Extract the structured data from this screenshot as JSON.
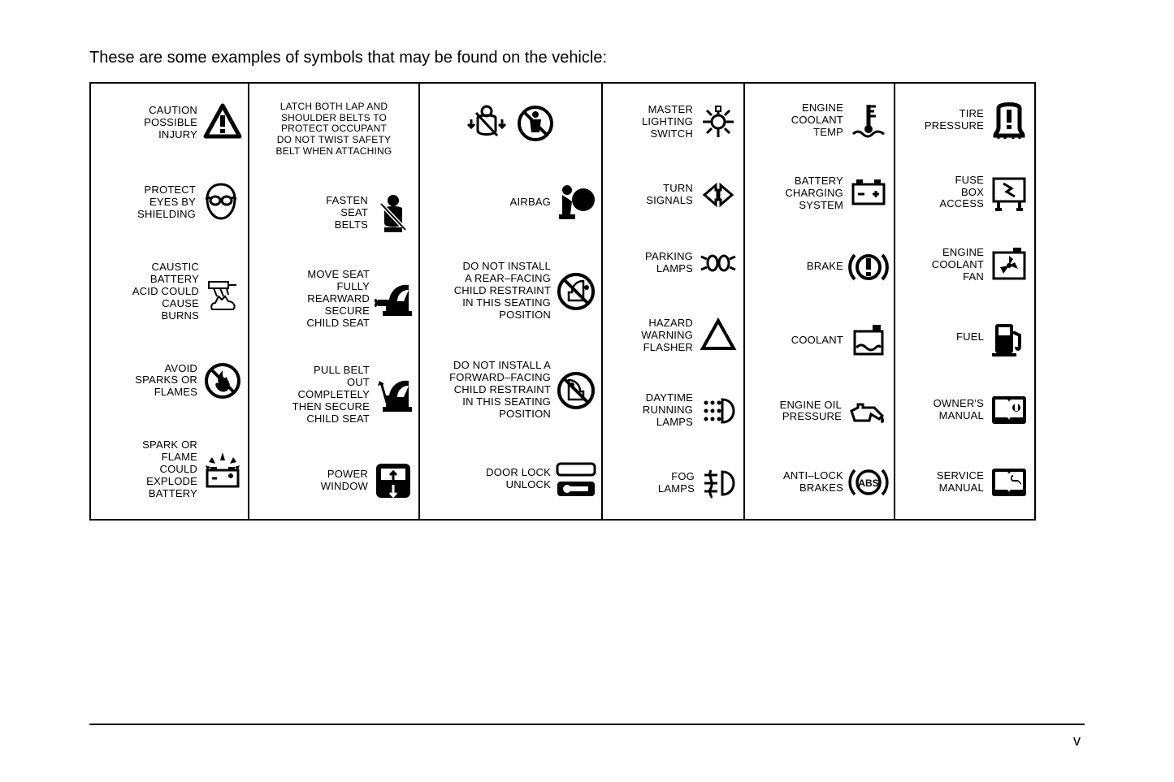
{
  "intro": "These are some examples of symbols that may be found on the vehicle:",
  "page_number": "v",
  "columns": [
    {
      "cells": [
        {
          "label": "CAUTION\nPOSSIBLE\nINJURY",
          "icon": "warning-triangle"
        },
        {
          "label": "PROTECT\nEYES BY\nSHIELDING",
          "icon": "goggles-face"
        },
        {
          "label": "CAUSTIC\nBATTERY\nACID COULD\nCAUSE\nBURNS",
          "icon": "acid-hand"
        },
        {
          "label": "AVOID\nSPARKS OR\nFLAMES",
          "icon": "no-flame"
        },
        {
          "label": "SPARK OR\nFLAME\nCOULD\nEXPLODE\nBATTERY",
          "icon": "battery-explode"
        }
      ]
    },
    {
      "cells": [
        {
          "label": "LATCH BOTH LAP AND\nSHOULDER BELTS TO\nPROTECT OCCUPANT\nDO NOT TWIST SAFETY\nBELT WHEN ATTACHING",
          "icon": "",
          "label_only": true
        },
        {
          "label": "FASTEN\nSEAT\nBELTS",
          "icon": "seatbelt-person"
        },
        {
          "label": "MOVE SEAT\nFULLY\nREARWARD\nSECURE\nCHILD SEAT",
          "icon": "child-seat-rear"
        },
        {
          "label": "PULL BELT\nOUT\nCOMPLETELY\nTHEN SECURE\nCHILD SEAT",
          "icon": "child-seat-belt"
        },
        {
          "label": "POWER\nWINDOW",
          "icon": "power-window"
        }
      ]
    },
    {
      "cells": [
        {
          "label": "",
          "icon": "belt-sequence",
          "icon_only": true
        },
        {
          "label": "AIRBAG",
          "icon": "airbag"
        },
        {
          "label": "DO NOT INSTALL\nA REAR–FACING\nCHILD RESTRAINT\nIN THIS SEATING\nPOSITION",
          "icon": "no-rear-child"
        },
        {
          "label": "DO NOT INSTALL A\nFORWARD–FACING\nCHILD RESTRAINT\nIN THIS SEATING\nPOSITION",
          "icon": "no-fwd-child"
        },
        {
          "label": "DOOR LOCK\nUNLOCK",
          "icon": "door-lock"
        }
      ]
    },
    {
      "cells": [
        {
          "label": "MASTER\nLIGHTING\nSWITCH",
          "icon": "master-light"
        },
        {
          "label": "TURN\nSIGNALS",
          "icon": "turn-signals"
        },
        {
          "label": "PARKING\nLAMPS",
          "icon": "parking-lamps"
        },
        {
          "label": "HAZARD\nWARNING\nFLASHER",
          "icon": "hazard"
        },
        {
          "label": "DAYTIME\nRUNNING\nLAMPS",
          "icon": "drl"
        },
        {
          "label": "FOG\nLAMPS",
          "icon": "fog-lamps"
        }
      ]
    },
    {
      "cells": [
        {
          "label": "ENGINE\nCOOLANT\nTEMP",
          "icon": "coolant-temp"
        },
        {
          "label": "BATTERY\nCHARGING\nSYSTEM",
          "icon": "battery"
        },
        {
          "label": "BRAKE",
          "icon": "brake"
        },
        {
          "label": "COOLANT",
          "icon": "coolant"
        },
        {
          "label": "ENGINE OIL\nPRESSURE",
          "icon": "oil-can"
        },
        {
          "label": "ANTI–LOCK\nBRAKES",
          "icon": "abs"
        }
      ]
    },
    {
      "cells": [
        {
          "label": "TIRE\nPRESSURE",
          "icon": "tire-pressure"
        },
        {
          "label": "FUSE\nBOX\nACCESS",
          "icon": "fuse-box"
        },
        {
          "label": "ENGINE\nCOOLANT\nFAN",
          "icon": "coolant-fan"
        },
        {
          "label": "FUEL",
          "icon": "fuel-pump"
        },
        {
          "label": "OWNER'S\nMANUAL",
          "icon": "owners-manual"
        },
        {
          "label": "SERVICE\nMANUAL",
          "icon": "service-manual"
        }
      ]
    }
  ]
}
